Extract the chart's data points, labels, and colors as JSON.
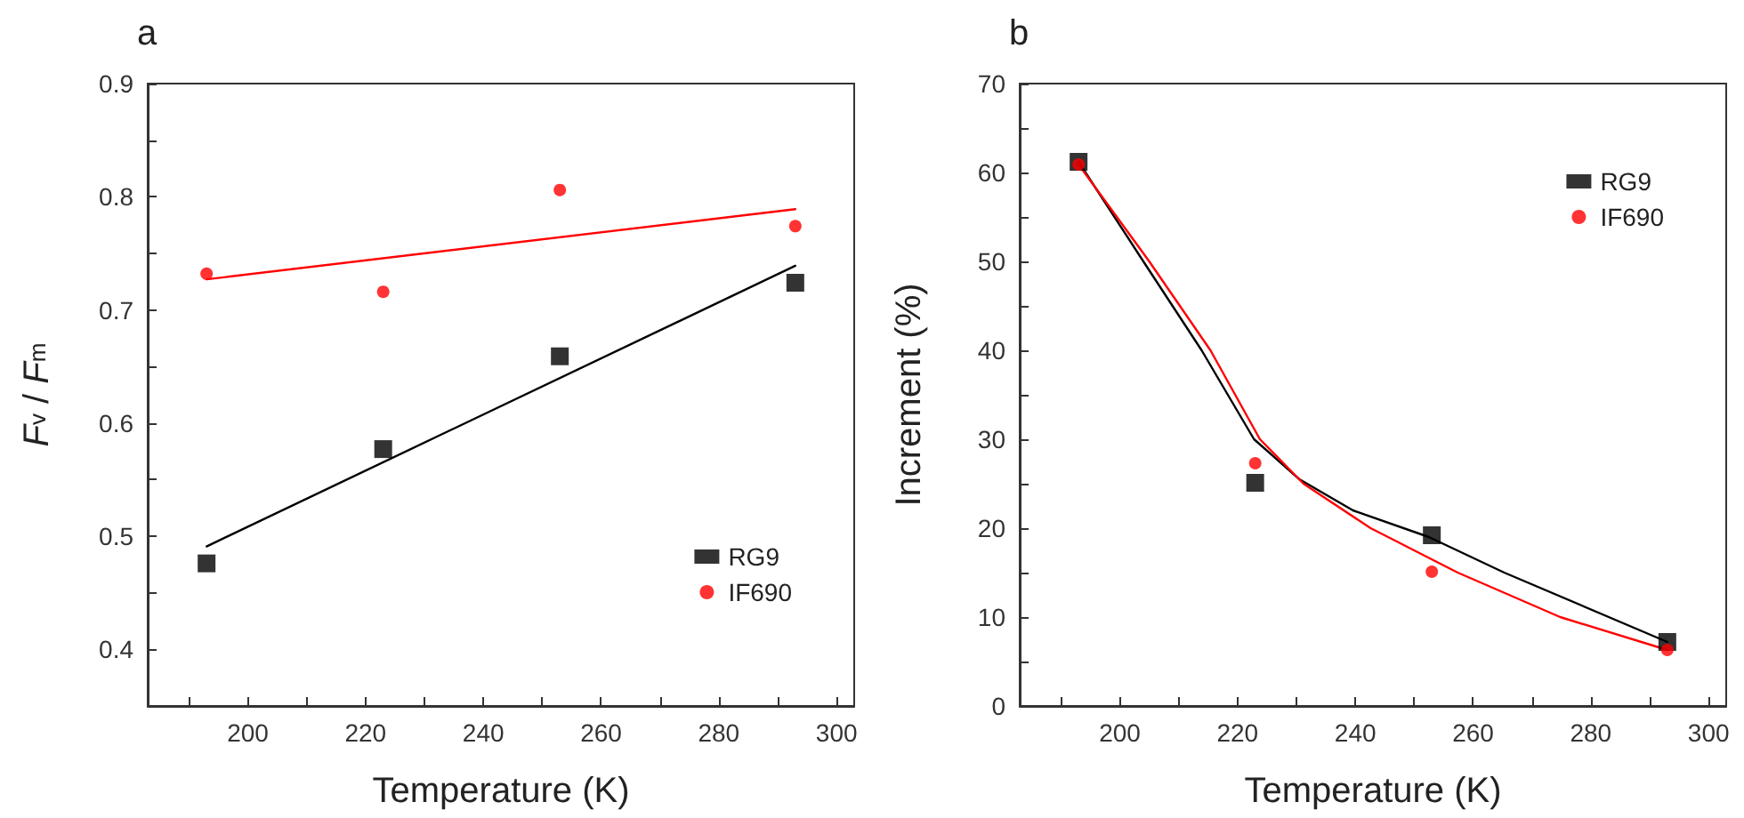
{
  "chart_data": [
    {
      "type": "scatter",
      "title": "a",
      "xlabel": "Temperature (K)",
      "ylabel": "F$_{v}$ / F$_{m}$",
      "legend": "bottom right",
      "xlim": [
        183,
        303
      ],
      "xticks": [
        {
          "value": 190,
          "label": null
        },
        200,
        {
          "value": 210,
          "label": null
        },
        220,
        {
          "value": 230,
          "label": null
        },
        240,
        {
          "value": 250,
          "label": null
        },
        260,
        {
          "value": 270,
          "label": null
        },
        280,
        {
          "value": 290,
          "label": null
        },
        300
      ],
      "ylim": [
        0.35,
        0.9
      ],
      "yticks": [
        0.4,
        {
          "value": 0.45,
          "label": null
        },
        0.5,
        {
          "value": 0.55,
          "label": null
        },
        0.6,
        {
          "value": 0.65,
          "label": null
        },
        0.7,
        {
          "value": 0.75,
          "label": null
        },
        0.8,
        {
          "value": 0.85,
          "label": null
        },
        0.9
      ],
      "series": [
        {
          "name": "RG9",
          "color": "#000000",
          "marker": "square",
          "x": [
            193,
            223,
            253,
            293
          ],
          "values": [
            0.476,
            0.577,
            0.659,
            0.724
          ]
        },
        {
          "name": "IF690",
          "color": "#ff0000",
          "marker": "circle",
          "x": [
            193,
            223,
            253,
            293
          ],
          "values": [
            0.732,
            0.716,
            0.806,
            0.774
          ]
        },
        {
          "type": "line",
          "color": "#000000",
          "marker": "none",
          "x": [
            193,
            293
          ],
          "values": [
            0.491,
            0.739
          ]
        },
        {
          "type": "line",
          "color": "#ff0000",
          "marker": "none",
          "x": [
            193,
            293
          ],
          "values": [
            0.727,
            0.789
          ]
        }
      ]
    },
    {
      "type": "scatter",
      "title": "b",
      "xlabel": "Temperature (K)",
      "ylabel": "Increment (%)",
      "legend": "top right",
      "xlim": [
        183,
        303
      ],
      "xticks": [
        {
          "value": 190,
          "label": null
        },
        200,
        {
          "value": 210,
          "label": null
        },
        220,
        {
          "value": 230,
          "label": null
        },
        240,
        {
          "value": 250,
          "label": null
        },
        260,
        {
          "value": 270,
          "label": null
        },
        280,
        {
          "value": 290,
          "label": null
        },
        300
      ],
      "ylim": [
        0,
        70
      ],
      "yticks": [
        0,
        {
          "value": 5,
          "label": null
        },
        10,
        {
          "value": 15,
          "label": null
        },
        20,
        {
          "value": 25,
          "label": null
        },
        30,
        {
          "value": 35,
          "label": null
        },
        40,
        {
          "value": 45,
          "label": null
        },
        50,
        {
          "value": 55,
          "label": null
        },
        60,
        {
          "value": 65,
          "label": null
        },
        70
      ],
      "series": [
        {
          "name": "RG9",
          "color": "#000000",
          "marker": "square",
          "x": [
            193,
            223,
            253,
            293
          ],
          "values": [
            61.2,
            25.1,
            19.2,
            7.2
          ]
        },
        {
          "name": "IF690",
          "color": "#ff0000",
          "marker": "circle",
          "x": [
            193,
            223,
            253,
            293
          ],
          "values": [
            60.9,
            27.3,
            15.1,
            6.3
          ]
        },
        {
          "type": "line",
          "color": "#000000",
          "marker": "none",
          "x": [
            193,
            204,
            213.9,
            222.8,
            230.5,
            239.6,
            252.5,
            265.3,
            293
          ],
          "values": [
            61.2,
            50,
            40,
            30,
            25.5,
            22,
            19,
            15,
            7.2
          ]
        },
        {
          "type": "line",
          "color": "#ff0000",
          "marker": "none",
          "x": [
            193,
            205,
            215.4,
            223.8,
            231.2,
            242.6,
            257.4,
            274.8,
            293
          ],
          "values": [
            60.9,
            50,
            40,
            30,
            25,
            20,
            15,
            10,
            6.3
          ]
        }
      ]
    }
  ]
}
